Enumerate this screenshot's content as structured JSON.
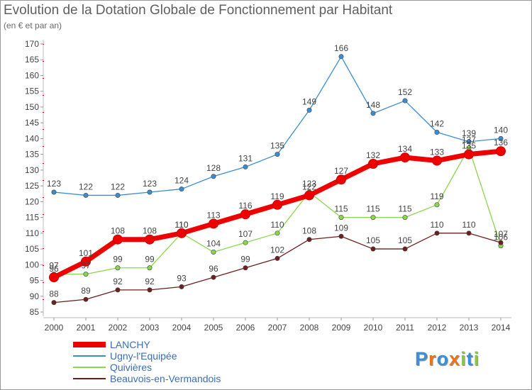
{
  "header": {
    "title": "Evolution de la Dotation Globale de Fonctionnement par Habitant",
    "subtitle": "(en € et par an)"
  },
  "logo": {
    "text": "Proxiti",
    "letters": [
      "P",
      "r",
      "o",
      "x",
      "i",
      "t",
      "i"
    ]
  },
  "chart_data": {
    "type": "line",
    "title": "Evolution de la Dotation Globale de Fonctionnement par Habitant",
    "subtitle": "(en € et par an)",
    "x": [
      "2000",
      "2001",
      "2002",
      "2003",
      "2004",
      "2005",
      "2006",
      "2007",
      "2008",
      "2009",
      "2010",
      "2011",
      "2012",
      "2013",
      "2014"
    ],
    "ylim": [
      85,
      170
    ],
    "yticks": [
      85,
      90,
      95,
      100,
      105,
      110,
      115,
      120,
      125,
      130,
      135,
      140,
      145,
      150,
      155,
      160,
      165,
      170
    ],
    "grid": false,
    "legend_position": "bottom-left",
    "series": [
      {
        "name": "LANCHY",
        "color": "#ee0000",
        "values": [
          96,
          101,
          108,
          108,
          110,
          113,
          116,
          119,
          122,
          127,
          132,
          134,
          133,
          135,
          136
        ]
      },
      {
        "name": "Ugny-l'Equipée",
        "color": "#3d8cd0",
        "values": [
          123,
          122,
          122,
          123,
          124,
          128,
          131,
          135,
          149,
          166,
          148,
          152,
          142,
          139,
          140
        ]
      },
      {
        "name": "Quivières",
        "color": "#8cd64e",
        "values": [
          97,
          97,
          99,
          99,
          110,
          104,
          107,
          110,
          123,
          115,
          115,
          115,
          119,
          137,
          106
        ]
      },
      {
        "name": "Beauvois-en-Vermandois",
        "color": "#6e1e1e",
        "values": [
          88,
          89,
          92,
          92,
          93,
          96,
          99,
          102,
          108,
          109,
          105,
          105,
          110,
          110,
          107
        ]
      }
    ]
  }
}
